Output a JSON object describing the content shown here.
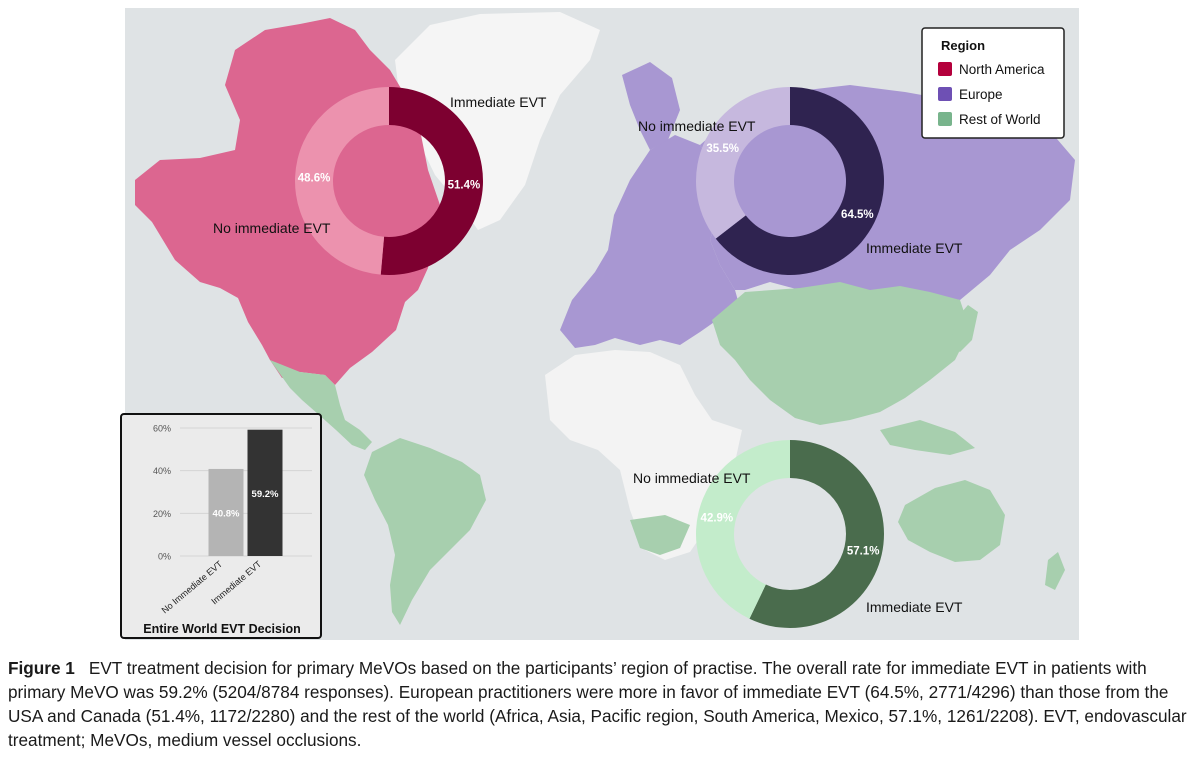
{
  "legend": {
    "title": "Region",
    "items": [
      {
        "label": "North America",
        "color": "#b4003c"
      },
      {
        "label": "Europe",
        "color": "#6e50b4"
      },
      {
        "label": "Rest of World",
        "color": "#78b48c"
      }
    ]
  },
  "chart_data": [
    {
      "type": "pie",
      "title": "North America",
      "categories": [
        "Immediate EVT",
        "No immediate EVT"
      ],
      "values": [
        51.4,
        48.6
      ],
      "value_labels": [
        "51.4%",
        "48.6%"
      ],
      "colors": [
        "#7d0030",
        "#ec92ae"
      ]
    },
    {
      "type": "pie",
      "title": "Europe",
      "categories": [
        "Immediate EVT",
        "No immediate EVT"
      ],
      "values": [
        64.5,
        35.5
      ],
      "value_labels": [
        "64.5%",
        "35.5%"
      ],
      "colors": [
        "#2f2350",
        "#c6b8de"
      ]
    },
    {
      "type": "pie",
      "title": "Rest of World",
      "categories": [
        "Immediate EVT",
        "No immediate EVT"
      ],
      "values": [
        57.1,
        42.9
      ],
      "value_labels": [
        "57.1%",
        "42.9%"
      ],
      "colors": [
        "#4a6c4d",
        "#c3eccb"
      ]
    },
    {
      "type": "bar",
      "title": "Entire World EVT Decision",
      "categories": [
        "No Immediate EVT",
        "Immediate EVT"
      ],
      "values": [
        40.8,
        59.2
      ],
      "value_labels": [
        "40.8%",
        "59.2%"
      ],
      "colors": [
        "#b4b4b4",
        "#333333"
      ],
      "yticks": [
        "0%",
        "20%",
        "40%",
        "60%"
      ],
      "ylim": [
        0,
        60
      ]
    }
  ],
  "caption": {
    "label": "Figure 1",
    "text": "EVT treatment decision for primary MeVOs based on the participants’ region of practise. The overall rate for immediate EVT in patients with primary MeVO was 59.2% (5204/8784 responses). European practitioners were more in favor of immediate EVT (64.5%, 2771/4296) than those from the USA and Canada (51.4%, 1172/2280) and the rest of the world (Africa, Asia, Pacific region, South America, Mexico, 57.1%, 1261/2208). EVT, endovascular treatment; MeVOs, medium vessel occlusions."
  }
}
